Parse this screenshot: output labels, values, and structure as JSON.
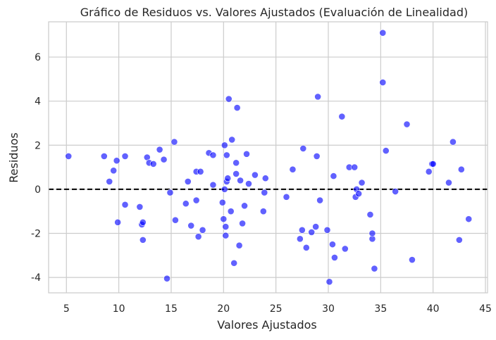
{
  "chart_data": {
    "type": "scatter",
    "title": "Gráfico de Residuos vs. Valores Ajustados (Evaluación de Linealidad)",
    "xlabel": "Valores Ajustados",
    "ylabel": "Residuos",
    "xlim": [
      3.3,
      45.2
    ],
    "ylim": [
      -4.7,
      7.6
    ],
    "xticks": [
      5,
      10,
      15,
      20,
      25,
      30,
      35,
      40,
      45
    ],
    "yticks": [
      -4,
      -2,
      0,
      2,
      4,
      6
    ],
    "grid": true,
    "reference_line": {
      "y": 0,
      "style": "dashed",
      "color": "#000000"
    },
    "point_color": "#0000ff",
    "series": [
      {
        "x": [
          5.2,
          8.6,
          9.1,
          9.5,
          9.8,
          9.9,
          10.6,
          10.6,
          12.0,
          12.2,
          12.3,
          12.3,
          12.7,
          12.9,
          13.3,
          13.9,
          14.3,
          14.6,
          14.9,
          15.3,
          15.4,
          16.4,
          16.6,
          16.9,
          17.4,
          17.4,
          17.6,
          17.8,
          18.0,
          18.6,
          19.0,
          19.0,
          19.9,
          20.0,
          20.1,
          20.1,
          20.2,
          20.2,
          20.3,
          20.3,
          20.4,
          20.5,
          20.7,
          20.8,
          21.0,
          21.2,
          21.2,
          21.3,
          21.5,
          21.6,
          21.8,
          22.0,
          22.2,
          22.4,
          23.0,
          23.8,
          23.9,
          24.0,
          26.0,
          26.6,
          27.3,
          27.5,
          27.6,
          27.9,
          28.4,
          28.8,
          28.9,
          29.0,
          29.2,
          29.9,
          30.1,
          30.4,
          30.5,
          30.6,
          31.3,
          31.6,
          32.0,
          32.5,
          32.6,
          32.7,
          32.9,
          33.2,
          34.0,
          34.2,
          34.2,
          34.4,
          35.2,
          35.2,
          35.5,
          36.4,
          37.5,
          38.0,
          39.6,
          39.9,
          40.0,
          41.5,
          41.9,
          42.5,
          42.7,
          43.4
        ],
        "y": [
          1.5,
          1.5,
          0.35,
          0.85,
          1.3,
          -1.5,
          1.5,
          -0.7,
          -0.8,
          -1.6,
          -1.5,
          -2.3,
          1.45,
          1.2,
          1.15,
          1.8,
          1.35,
          -4.05,
          -0.15,
          2.15,
          -1.4,
          -0.65,
          0.35,
          -1.65,
          0.8,
          -0.5,
          -2.15,
          0.8,
          -1.85,
          1.65,
          0.2,
          1.55,
          -0.6,
          -1.35,
          2.0,
          0.0,
          -2.1,
          -1.7,
          1.55,
          0.35,
          0.5,
          4.1,
          -1.0,
          2.25,
          -3.35,
          0.7,
          1.2,
          3.7,
          -2.55,
          0.4,
          -1.55,
          -0.75,
          1.6,
          0.25,
          0.65,
          -1.0,
          -0.15,
          0.5,
          -0.35,
          0.9,
          -2.25,
          -1.85,
          1.85,
          -2.65,
          -1.95,
          -1.7,
          1.5,
          4.2,
          -0.5,
          -1.85,
          -4.2,
          -2.5,
          0.6,
          -3.1,
          3.3,
          -2.7,
          1.0,
          1.0,
          -0.35,
          0.0,
          -0.2,
          0.3,
          -1.15,
          -2.25,
          -2.0,
          -3.6,
          7.1,
          4.85,
          1.75,
          -0.1,
          2.95,
          -3.2,
          0.8,
          1.15,
          1.15,
          0.3,
          2.15,
          -2.3,
          0.9,
          -1.35
        ]
      }
    ]
  }
}
